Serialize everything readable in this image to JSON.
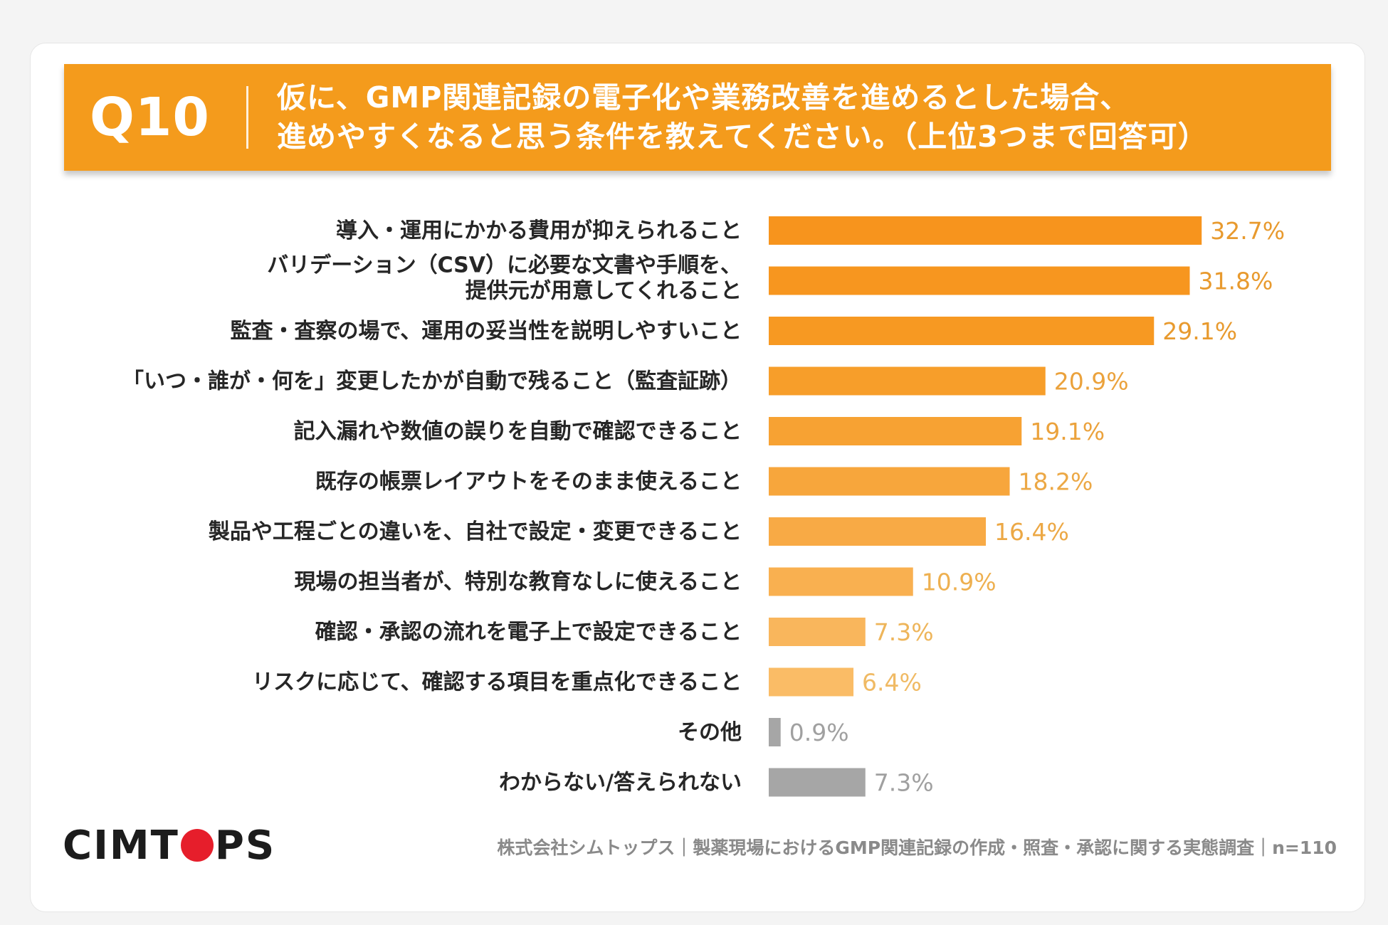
{
  "header": {
    "question_number": "Q10",
    "question_line1": "仮に、GMP関連記録の電子化や業務改善を進めるとした場合、",
    "question_line2": "進めやすくなると思う条件を教えてください。（上位3つまで回答可）"
  },
  "colors": {
    "banner": "#f49b1c",
    "other_bars": "#a6a6a6"
  },
  "chart_data": {
    "type": "bar",
    "orientation": "horizontal",
    "unit": "%",
    "categories": [
      "導入・運用にかかる費用が抑えられること",
      "バリデーション（CSV）に必要な文書や手順を、\n提供元が用意してくれること",
      "監査・査察の場で、運用の妥当性を説明しやすいこと",
      "「いつ・誰が・何を」変更したかが自動で残ること（監査証跡）",
      "記入漏れや数値の誤りを自動で確認できること",
      "既存の帳票レイアウトをそのまま使えること",
      "製品や工程ごとの違いを、自社で設定・変更できること",
      "現場の担当者が、特別な教育なしに使えること",
      "確認・承認の流れを電子上で設定できること",
      "リスクに応じて、確認する項目を重点化できること",
      "その他",
      "わからない/答えられない"
    ],
    "values": [
      32.7,
      31.8,
      29.1,
      20.9,
      19.1,
      18.2,
      16.4,
      10.9,
      7.3,
      6.4,
      0.9,
      7.3
    ],
    "value_labels": [
      "32.7%",
      "31.8%",
      "29.1%",
      "20.9%",
      "19.1%",
      "18.2%",
      "16.4%",
      "10.9%",
      "7.3%",
      "6.4%",
      "0.9%",
      "7.3%"
    ],
    "bar_colors": [
      "#f7941d",
      "#f7961f",
      "#f79922",
      "#f79e2a",
      "#f7a233",
      "#f7a63c",
      "#f8aa45",
      "#f9b050",
      "#f9b65c",
      "#fabc66",
      "#a6a6a6",
      "#a6a6a6"
    ],
    "label_colors": [
      "#e89a2e",
      "#e89a2e",
      "#e89a2e",
      "#eba23c",
      "#eba23c",
      "#eca845",
      "#eca845",
      "#eeb050",
      "#eeb55a",
      "#f0ba64",
      "#a0a0a0",
      "#a0a0a0"
    ],
    "xlim": [
      0,
      35
    ],
    "grid": false,
    "legend": "none"
  },
  "footer": {
    "logo_part1": "CIMT",
    "logo_part2": "PS",
    "source": "株式会社シムトップス｜製薬現場におけるGMP関連記録の作成・照査・承認に関する実態調査｜n=110"
  }
}
